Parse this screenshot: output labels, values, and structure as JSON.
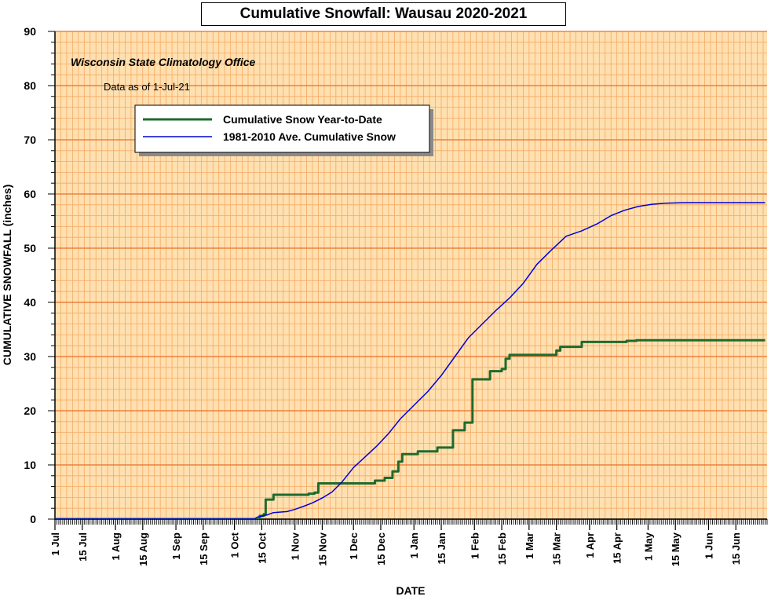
{
  "chart_data": {
    "type": "line",
    "title": "Cumulative Snowfall: Wausau 2020-2021",
    "source": "Wisconsin State Climatology Office",
    "note": "Data as of 1-Jul-21",
    "xlabel": "DATE",
    "ylabel": "CUMULATIVE SNOWFALL (inches)",
    "ylim": [
      0,
      90
    ],
    "yticks": [
      "0",
      "10",
      "20",
      "30",
      "40",
      "50",
      "60",
      "70",
      "80",
      "90"
    ],
    "xlim": [
      "2020-07-01",
      "2021-06-30"
    ],
    "xticks": [
      {
        "date": "2020-07-01",
        "label": "1 Jul"
      },
      {
        "date": "2020-07-15",
        "label": "15 Jul"
      },
      {
        "date": "2020-08-01",
        "label": "1 Aug"
      },
      {
        "date": "2020-08-15",
        "label": "15 Aug"
      },
      {
        "date": "2020-09-01",
        "label": "1 Sep"
      },
      {
        "date": "2020-09-15",
        "label": "15 Sep"
      },
      {
        "date": "2020-10-01",
        "label": "1 Oct"
      },
      {
        "date": "2020-10-15",
        "label": "15 Oct"
      },
      {
        "date": "2020-11-01",
        "label": "1 Nov"
      },
      {
        "date": "2020-11-15",
        "label": "15 Nov"
      },
      {
        "date": "2020-12-01",
        "label": "1 Dec"
      },
      {
        "date": "2020-12-15",
        "label": "15 Dec"
      },
      {
        "date": "2021-01-01",
        "label": "1 Jan"
      },
      {
        "date": "2021-01-15",
        "label": "15 Jan"
      },
      {
        "date": "2021-02-01",
        "label": "1 Feb"
      },
      {
        "date": "2021-02-15",
        "label": "15 Feb"
      },
      {
        "date": "2021-03-01",
        "label": "1 Mar"
      },
      {
        "date": "2021-03-15",
        "label": "15 Mar"
      },
      {
        "date": "2021-04-01",
        "label": "1 Apr"
      },
      {
        "date": "2021-04-15",
        "label": "15 Apr"
      },
      {
        "date": "2021-05-01",
        "label": "1 May"
      },
      {
        "date": "2021-05-15",
        "label": "15 May"
      },
      {
        "date": "2021-06-01",
        "label": "1 Jun"
      },
      {
        "date": "2021-06-15",
        "label": "15 Jun"
      }
    ],
    "grid": true,
    "legend_position": "upper-left",
    "series": [
      {
        "name": "Cumulative Snow Year-to-Date",
        "color": "#1e6b2e",
        "step": true,
        "points": [
          {
            "x": "2020-07-01",
            "y": 0
          },
          {
            "x": "2020-10-13",
            "y": 0
          },
          {
            "x": "2020-10-14",
            "y": 0.6
          },
          {
            "x": "2020-10-16",
            "y": 0.9
          },
          {
            "x": "2020-10-17",
            "y": 3.6
          },
          {
            "x": "2020-10-21",
            "y": 4.5
          },
          {
            "x": "2020-11-08",
            "y": 4.7
          },
          {
            "x": "2020-11-11",
            "y": 4.9
          },
          {
            "x": "2020-11-13",
            "y": 6.6
          },
          {
            "x": "2020-12-12",
            "y": 7.1
          },
          {
            "x": "2020-12-17",
            "y": 7.6
          },
          {
            "x": "2020-12-21",
            "y": 8.8
          },
          {
            "x": "2020-12-24",
            "y": 10.6
          },
          {
            "x": "2020-12-26",
            "y": 12.0
          },
          {
            "x": "2021-01-03",
            "y": 12.5
          },
          {
            "x": "2021-01-13",
            "y": 13.2
          },
          {
            "x": "2021-01-21",
            "y": 16.4
          },
          {
            "x": "2021-01-27",
            "y": 17.8
          },
          {
            "x": "2021-01-31",
            "y": 25.8
          },
          {
            "x": "2021-02-09",
            "y": 27.3
          },
          {
            "x": "2021-02-15",
            "y": 27.7
          },
          {
            "x": "2021-02-17",
            "y": 29.6
          },
          {
            "x": "2021-02-19",
            "y": 30.3
          },
          {
            "x": "2021-03-15",
            "y": 31.1
          },
          {
            "x": "2021-03-17",
            "y": 31.8
          },
          {
            "x": "2021-03-28",
            "y": 32.7
          },
          {
            "x": "2021-04-20",
            "y": 32.9
          },
          {
            "x": "2021-04-25",
            "y": 33.0
          },
          {
            "x": "2021-06-30",
            "y": 33.0
          }
        ]
      },
      {
        "name": "1981-2010 Ave. Cumulative Snow",
        "color": "#0000d8",
        "step": false,
        "points": [
          {
            "x": "2020-07-01",
            "y": 0
          },
          {
            "x": "2020-10-11",
            "y": 0
          },
          {
            "x": "2020-10-13",
            "y": 0.4
          },
          {
            "x": "2020-10-18",
            "y": 0.8
          },
          {
            "x": "2020-10-21",
            "y": 1.2
          },
          {
            "x": "2020-10-28",
            "y": 1.4
          },
          {
            "x": "2020-11-01",
            "y": 1.8
          },
          {
            "x": "2020-11-05",
            "y": 2.3
          },
          {
            "x": "2020-11-10",
            "y": 3.0
          },
          {
            "x": "2020-11-15",
            "y": 3.9
          },
          {
            "x": "2020-11-20",
            "y": 5.0
          },
          {
            "x": "2020-11-25",
            "y": 6.8
          },
          {
            "x": "2020-12-01",
            "y": 9.5
          },
          {
            "x": "2020-12-07",
            "y": 11.5
          },
          {
            "x": "2020-12-13",
            "y": 13.5
          },
          {
            "x": "2020-12-19",
            "y": 15.8
          },
          {
            "x": "2020-12-25",
            "y": 18.5
          },
          {
            "x": "2021-01-01",
            "y": 21.0
          },
          {
            "x": "2021-01-08",
            "y": 23.5
          },
          {
            "x": "2021-01-15",
            "y": 26.5
          },
          {
            "x": "2021-01-22",
            "y": 30.0
          },
          {
            "x": "2021-01-29",
            "y": 33.5
          },
          {
            "x": "2021-02-05",
            "y": 36.0
          },
          {
            "x": "2021-02-12",
            "y": 38.5
          },
          {
            "x": "2021-02-19",
            "y": 40.8
          },
          {
            "x": "2021-02-26",
            "y": 43.5
          },
          {
            "x": "2021-03-05",
            "y": 47.0
          },
          {
            "x": "2021-03-12",
            "y": 49.5
          },
          {
            "x": "2021-03-20",
            "y": 52.2
          },
          {
            "x": "2021-03-28",
            "y": 53.2
          },
          {
            "x": "2021-04-05",
            "y": 54.5
          },
          {
            "x": "2021-04-12",
            "y": 56.0
          },
          {
            "x": "2021-04-19",
            "y": 57.0
          },
          {
            "x": "2021-04-26",
            "y": 57.7
          },
          {
            "x": "2021-05-03",
            "y": 58.1
          },
          {
            "x": "2021-05-10",
            "y": 58.3
          },
          {
            "x": "2021-05-20",
            "y": 58.4
          },
          {
            "x": "2021-06-30",
            "y": 58.4
          }
        ]
      }
    ]
  },
  "colors": {
    "plot_background": "#ffe0b0",
    "major_grid": "#e8702a",
    "minor_grid": "#f5a964",
    "vertical_grid": "#f5a964"
  }
}
